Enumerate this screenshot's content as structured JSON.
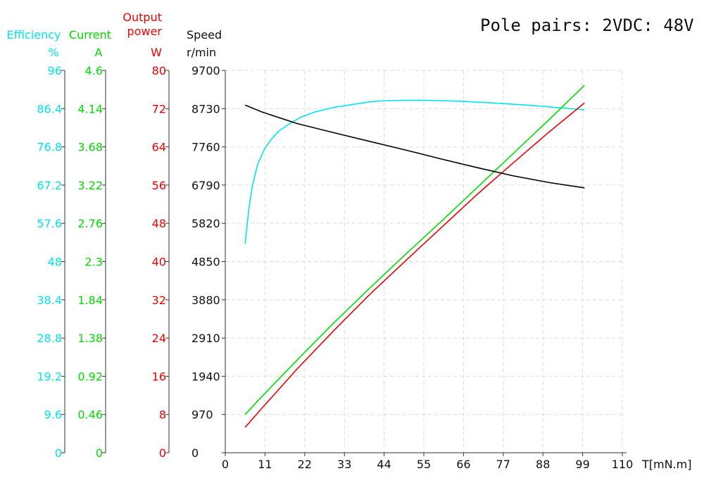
{
  "info": {
    "pole_pairs": "Pole pairs: 2",
    "vdc": "VDC: 48V"
  },
  "colors": {
    "efficiency": "#00e5ee",
    "current": "#00dd00",
    "power": "#ee0000",
    "speed": "#000000",
    "grid": "#dddddd"
  },
  "chart_data": {
    "type": "line",
    "xlabel": "T[mN.m]",
    "xlim": [
      0,
      110
    ],
    "x_ticks": [
      "0",
      "11",
      "22",
      "33",
      "44",
      "55",
      "66",
      "77",
      "88",
      "99",
      "110"
    ],
    "grid": true,
    "axes": [
      {
        "key": "efficiency",
        "title": "Efficiency",
        "unit": "%",
        "ylim": [
          0,
          96
        ],
        "ticks": [
          "0",
          "9.6",
          "19.2",
          "28.8",
          "38.4",
          "48",
          "57.6",
          "67.2",
          "76.8",
          "86.4",
          "96"
        ]
      },
      {
        "key": "current",
        "title": "Current",
        "unit": "A",
        "ylim": [
          0,
          4.6
        ],
        "ticks": [
          "0",
          "0.46",
          "0.92",
          "1.38",
          "1.84",
          "2.3",
          "2.76",
          "3.22",
          "3.68",
          "4.14",
          "4.6"
        ]
      },
      {
        "key": "power",
        "title": "Output power",
        "unit": "W",
        "ylim": [
          0,
          80
        ],
        "ticks": [
          "0",
          "8",
          "16",
          "24",
          "32",
          "40",
          "48",
          "56",
          "64",
          "72",
          "80"
        ]
      },
      {
        "key": "speed",
        "title": "Speed",
        "unit": "r/min",
        "ylim": [
          0,
          9700
        ],
        "ticks": [
          "0",
          "970",
          "1940",
          "2910",
          "3880",
          "4850",
          "5820",
          "6790",
          "7760",
          "8730",
          "9700"
        ]
      }
    ],
    "series": [
      {
        "key": "efficiency",
        "axis": "efficiency",
        "x": [
          5.5,
          6.5,
          7.5,
          9,
          11,
          13,
          15,
          18,
          21,
          25,
          30,
          35,
          40,
          44,
          50,
          55,
          60,
          66,
          75,
          85,
          93,
          99.5
        ],
        "y": [
          52.5,
          61,
          67,
          72.5,
          76.5,
          79,
          80.9,
          82.7,
          84.3,
          85.6,
          86.7,
          87.4,
          88.1,
          88.4,
          88.5,
          88.5,
          88.4,
          88.2,
          87.8,
          87.2,
          86.6,
          86.1
        ]
      },
      {
        "key": "current",
        "axis": "current",
        "x": [
          5.5,
          10,
          20,
          30,
          40,
          50,
          60,
          70,
          80,
          90,
          99.5
        ],
        "y": [
          0.46,
          0.67,
          1.12,
          1.56,
          1.98,
          2.39,
          2.79,
          3.2,
          3.61,
          4.02,
          4.42
        ]
      },
      {
        "key": "power",
        "axis": "power",
        "x": [
          5.5,
          10,
          20,
          30,
          40,
          50,
          60,
          70,
          80,
          90,
          99.5
        ],
        "y": [
          5.3,
          9.2,
          17.6,
          25.5,
          33.1,
          40.2,
          47.2,
          54.2,
          60.8,
          67.3,
          73.2
        ]
      },
      {
        "key": "speed",
        "axis": "speed",
        "x": [
          5.5,
          10,
          20,
          30,
          40,
          50,
          60,
          70,
          80,
          90,
          99.5
        ],
        "y": [
          8820,
          8650,
          8350,
          8120,
          7900,
          7680,
          7450,
          7230,
          7020,
          6850,
          6720
        ]
      }
    ]
  }
}
